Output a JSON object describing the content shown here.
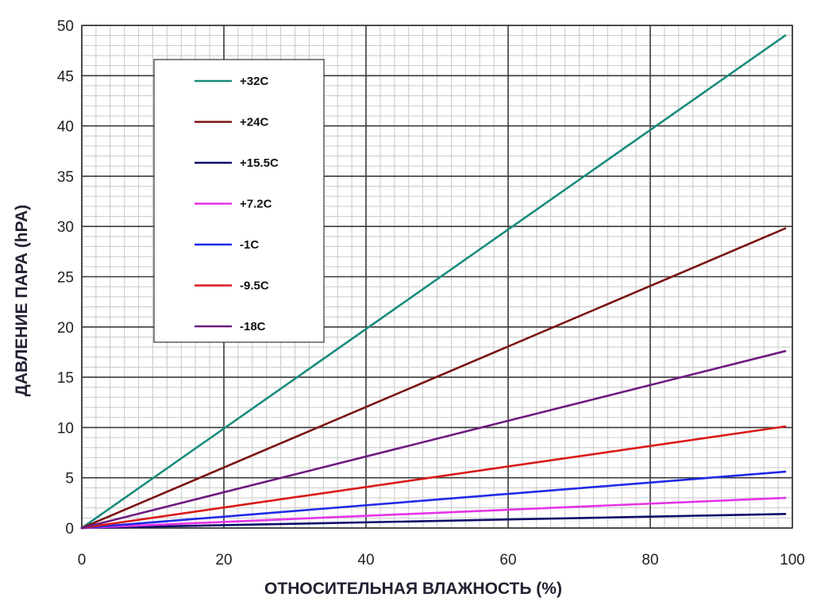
{
  "chart_data": {
    "type": "line",
    "xlabel": "ОТНОСИТЕЛЬНАЯ ВЛАЖНОСТЬ (%)",
    "ylabel": "ДАВЛЕНИЕ ПАРА (hPA)",
    "xlim": [
      0,
      100
    ],
    "ylim": [
      0,
      50
    ],
    "x_ticks": [
      0,
      20,
      40,
      60,
      80,
      100
    ],
    "y_ticks": [
      0,
      5,
      10,
      15,
      20,
      25,
      30,
      35,
      40,
      45,
      50
    ],
    "grid": true,
    "legend_position": "top-left",
    "series": [
      {
        "name": "+32C",
        "color": "#1a8c7c",
        "x": [
          0,
          99
        ],
        "values": [
          0,
          49.0
        ]
      },
      {
        "name": "+24C",
        "color": "#7b1414",
        "x": [
          0,
          99
        ],
        "values": [
          0,
          29.8
        ]
      },
      {
        "name": "+15.5C",
        "color": "#0d0d6b",
        "x": [
          0,
          99
        ],
        "values": [
          0,
          1.4
        ]
      },
      {
        "name": "+7.2C",
        "color": "#e633e6",
        "x": [
          0,
          99
        ],
        "values": [
          0,
          3.0
        ]
      },
      {
        "name": "-1C",
        "color": "#1f2be6",
        "x": [
          0,
          99
        ],
        "values": [
          0,
          5.6
        ]
      },
      {
        "name": "-9.5C",
        "color": "#d91a1a",
        "x": [
          0,
          99
        ],
        "values": [
          0,
          10.1
        ]
      },
      {
        "name": "-18C",
        "color": "#6e1a80",
        "x": [
          0,
          99
        ],
        "values": [
          0,
          17.6
        ]
      }
    ]
  }
}
